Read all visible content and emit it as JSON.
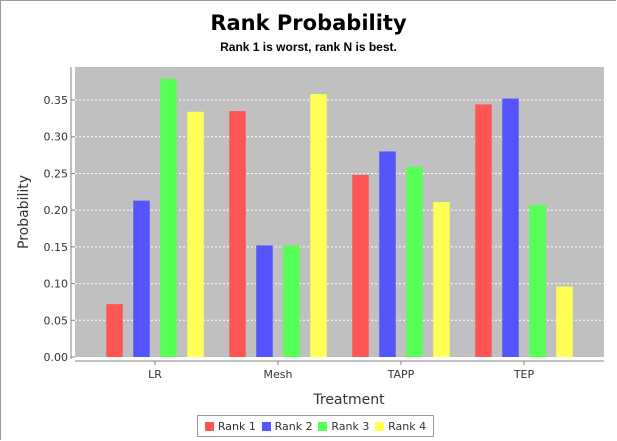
{
  "chart_data": {
    "type": "bar",
    "title": "Rank Probability",
    "subtitle": "Rank 1 is worst, rank N is best.",
    "xlabel": "Treatment",
    "ylabel": "Probability",
    "categories": [
      "LR",
      "Mesh",
      "TAPP",
      "TEP"
    ],
    "ylim": [
      0,
      0.395
    ],
    "yticks": [
      0.0,
      0.05,
      0.1,
      0.15,
      0.2,
      0.25,
      0.3,
      0.35
    ],
    "ytick_labels": [
      "0.00",
      "0.05",
      "0.10",
      "0.15",
      "0.20",
      "0.25",
      "0.30",
      "0.35"
    ],
    "grid": true,
    "legend_position": "bottom",
    "series": [
      {
        "name": "Rank 1",
        "color": "#ff5555",
        "values": [
          0.072,
          0.335,
          0.248,
          0.344
        ]
      },
      {
        "name": "Rank 2",
        "color": "#5555ff",
        "values": [
          0.213,
          0.152,
          0.28,
          0.352
        ]
      },
      {
        "name": "Rank 3",
        "color": "#55ff55",
        "values": [
          0.379,
          0.152,
          0.259,
          0.207
        ]
      },
      {
        "name": "Rank 4",
        "color": "#ffff55",
        "values": [
          0.334,
          0.358,
          0.211,
          0.096
        ]
      }
    ]
  },
  "colors": {
    "plot_background": "#c0c0c0",
    "gridline": "#ffffff",
    "axis": "#808080"
  }
}
